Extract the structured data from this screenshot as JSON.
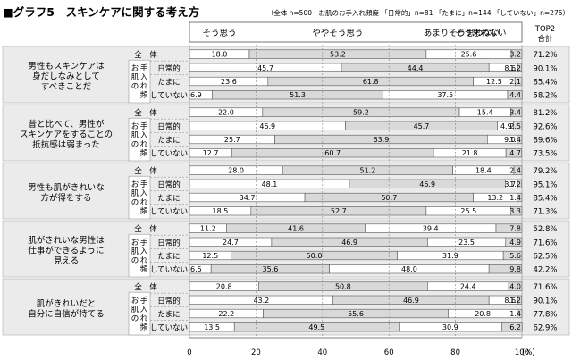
{
  "title": "■グラフ5　スキンケアに関する考え方",
  "subtitle": "（全体 n=500　お肌のお手入れ頻度 「日常的」n=81 「たまに」n=144 「していない」n=275）",
  "top2_header": [
    "TOP2",
    "合計"
  ],
  "group_label": "お肌の手入れ頻度",
  "x_axis_unit": "(%)",
  "colors": {
    "s1": "#ffffff",
    "s2": "#d9d9d9",
    "s3": "#ffffff",
    "s4": "#d9d9d9",
    "border": "#555555",
    "band": "#ebebeb"
  },
  "chart_data": {
    "type": "bar",
    "stacked": true,
    "orientation": "horizontal",
    "xlim": [
      0,
      100
    ],
    "xticks": [
      0,
      20,
      40,
      60,
      80,
      100
    ],
    "series": [
      {
        "name": "そう思う"
      },
      {
        "name": "ややそう思う"
      },
      {
        "name": "あまりそう思わない"
      },
      {
        "name": "そう思わない"
      }
    ],
    "row_labels": [
      "全　体",
      "日常的",
      "たまに",
      "していない"
    ],
    "questions": [
      {
        "label_lines": [
          "男性もスキンケアは",
          "身だしなみとして",
          "すべきことだ"
        ],
        "rows": [
          {
            "values": [
              18.0,
              53.2,
              25.6,
              3.2
            ],
            "top2": "71.2%"
          },
          {
            "values": [
              45.7,
              44.4,
              8.6,
              1.2
            ],
            "top2": "90.1%"
          },
          {
            "values": [
              23.6,
              61.8,
              12.5,
              2.1
            ],
            "top2": "85.4%"
          },
          {
            "values": [
              6.9,
              51.3,
              37.5,
              4.4
            ],
            "top2": "58.2%"
          }
        ]
      },
      {
        "label_lines": [
          "昔と比べて、男性が",
          "スキンケアをすることの",
          "抵抗感は弱まった"
        ],
        "rows": [
          {
            "values": [
              22.0,
              59.2,
              15.4,
              3.4
            ],
            "top2": "81.2%"
          },
          {
            "values": [
              46.9,
              45.7,
              4.9,
              2.5
            ],
            "top2": "92.6%"
          },
          {
            "values": [
              25.7,
              63.9,
              9.0,
              1.4
            ],
            "top2": "89.6%"
          },
          {
            "values": [
              12.7,
              60.7,
              21.8,
              4.7
            ],
            "top2": "73.5%"
          }
        ]
      },
      {
        "label_lines": [
          "男性も肌がきれいな",
          "方が得をする"
        ],
        "rows": [
          {
            "values": [
              28.0,
              51.2,
              18.4,
              2.4
            ],
            "top2": "79.2%"
          },
          {
            "values": [
              48.1,
              46.9,
              3.7,
              1.2
            ],
            "top2": "95.1%"
          },
          {
            "values": [
              34.7,
              50.7,
              13.2,
              1.4
            ],
            "top2": "85.4%"
          },
          {
            "values": [
              18.5,
              52.7,
              25.5,
              3.3
            ],
            "top2": "71.3%"
          }
        ]
      },
      {
        "label_lines": [
          "肌がきれいな男性は",
          "仕事ができるように",
          "見える"
        ],
        "rows": [
          {
            "values": [
              11.2,
              41.6,
              39.4,
              7.8
            ],
            "top2": "52.8%"
          },
          {
            "values": [
              24.7,
              46.9,
              23.5,
              4.9
            ],
            "top2": "71.6%"
          },
          {
            "values": [
              12.5,
              50.0,
              31.9,
              5.6
            ],
            "top2": "62.5%"
          },
          {
            "values": [
              6.5,
              35.6,
              48.0,
              9.8
            ],
            "top2": "42.2%"
          }
        ]
      },
      {
        "label_lines": [
          "肌がきれいだと",
          "自分に自信が持てる"
        ],
        "rows": [
          {
            "values": [
              20.8,
              50.8,
              24.4,
              4.0
            ],
            "top2": "71.6%"
          },
          {
            "values": [
              43.2,
              46.9,
              8.6,
              1.2
            ],
            "top2": "90.1%"
          },
          {
            "values": [
              22.2,
              55.6,
              20.8,
              1.4
            ],
            "top2": "77.8%"
          },
          {
            "values": [
              13.5,
              49.5,
              30.9,
              6.2
            ],
            "top2": "62.9%"
          }
        ]
      }
    ]
  }
}
